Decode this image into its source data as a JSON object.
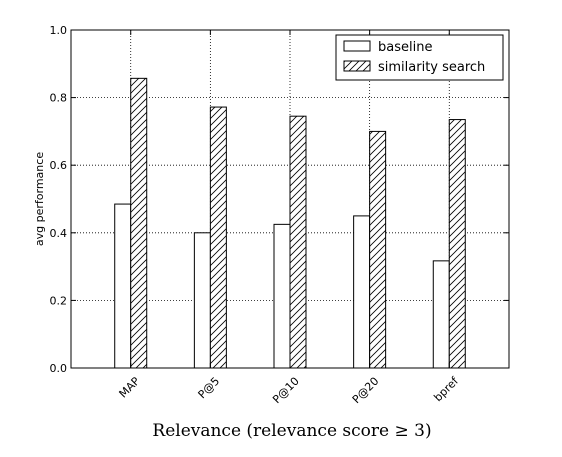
{
  "chart_data": {
    "type": "bar",
    "categories": [
      "MAP",
      "P@5",
      "P@10",
      "P@20",
      "bpref"
    ],
    "series": [
      {
        "name": "baseline",
        "values": [
          0.485,
          0.4,
          0.425,
          0.45,
          0.317
        ],
        "fill": "#ffffff",
        "pattern": "none"
      },
      {
        "name": "similarity search",
        "values": [
          0.857,
          0.772,
          0.745,
          0.7,
          0.735
        ],
        "fill": "#ffffff",
        "pattern": "hatch"
      }
    ],
    "xlabel": "Relevance (relevance score ≥ 3)",
    "ylabel": "avg performance",
    "ylim": [
      0,
      1.0
    ],
    "yticks": [
      "0.0",
      "0.2",
      "0.4",
      "0.6",
      "0.8",
      "1.0"
    ],
    "grid": true,
    "legend": "top-right",
    "xtick_rotation": -45
  }
}
